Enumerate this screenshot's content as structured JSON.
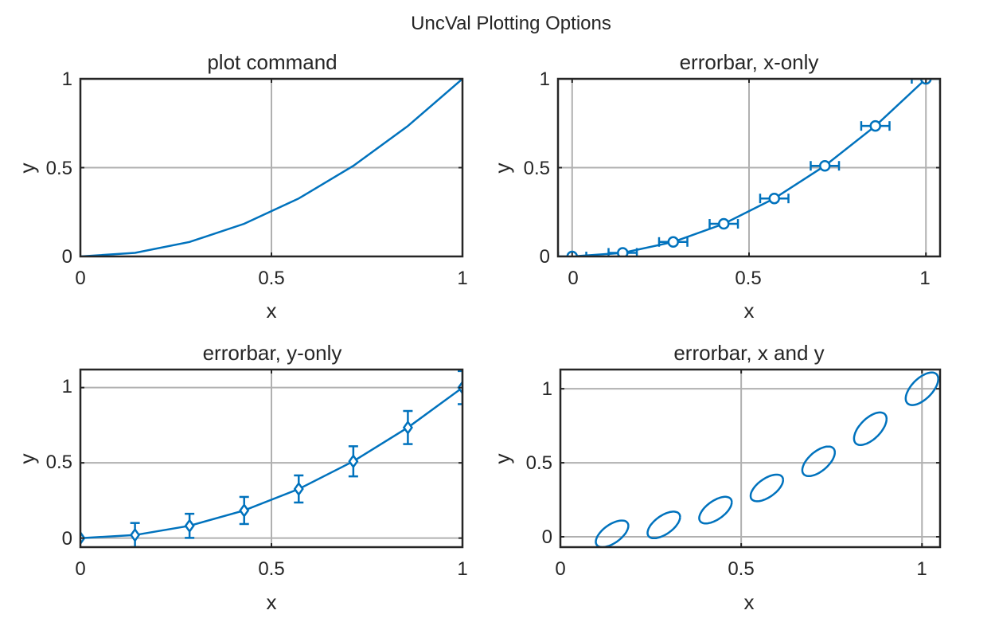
{
  "figure_title": "UncVal Plotting Options",
  "series_color": "#0072BD",
  "chart_data": [
    {
      "type": "line",
      "title": "plot command",
      "xlabel": "x",
      "ylabel": "y",
      "xlim": [
        0,
        1
      ],
      "ylim": [
        0,
        1
      ],
      "xticks": [
        0,
        0.5,
        1
      ],
      "xtick_labels": [
        "0",
        "0.5",
        "1"
      ],
      "yticks": [
        0,
        0.5,
        1
      ],
      "ytick_labels": [
        "0",
        "0.5",
        "1"
      ],
      "grid": true,
      "marker": "none",
      "series": [
        {
          "name": "y",
          "x": [
            0,
            0.1429,
            0.2857,
            0.4286,
            0.5714,
            0.7143,
            0.8571,
            1
          ],
          "y": [
            0,
            0.0204,
            0.0816,
            0.1837,
            0.3265,
            0.5102,
            0.7347,
            1
          ]
        }
      ]
    },
    {
      "type": "line",
      "title": "errorbar, x-only",
      "xlabel": "x",
      "ylabel": "y",
      "xlim": [
        -0.04,
        1.04
      ],
      "ylim": [
        0,
        1
      ],
      "xticks": [
        0,
        0.5,
        1
      ],
      "xtick_labels": [
        "0",
        "0.5",
        "1"
      ],
      "yticks": [
        0,
        0.5,
        1
      ],
      "ytick_labels": [
        "0",
        "0.5",
        "1"
      ],
      "grid": true,
      "marker": "circle",
      "series": [
        {
          "name": "y",
          "x": [
            0,
            0.1429,
            0.2857,
            0.4286,
            0.5714,
            0.7143,
            0.8571,
            1
          ],
          "y": [
            0,
            0.0204,
            0.0816,
            0.1837,
            0.3265,
            0.5102,
            0.7347,
            1
          ],
          "xerr": [
            0.04,
            0.04,
            0.04,
            0.04,
            0.04,
            0.04,
            0.04,
            0.04
          ]
        }
      ]
    },
    {
      "type": "line",
      "title": "errorbar, y-only",
      "xlabel": "x",
      "ylabel": "y",
      "xlim": [
        0,
        1
      ],
      "ylim": [
        -0.06,
        1.12
      ],
      "xticks": [
        0,
        0.5,
        1
      ],
      "xtick_labels": [
        "0",
        "0.5",
        "1"
      ],
      "yticks": [
        0,
        0.5,
        1
      ],
      "ytick_labels": [
        "0",
        "0.5",
        "1"
      ],
      "grid": true,
      "marker": "diamond",
      "series": [
        {
          "name": "y",
          "x": [
            0,
            0.1429,
            0.2857,
            0.4286,
            0.5714,
            0.7143,
            0.8571,
            1
          ],
          "y": [
            0,
            0.0204,
            0.0816,
            0.1837,
            0.3265,
            0.5102,
            0.7347,
            1
          ],
          "yerr": [
            0,
            0.08,
            0.08,
            0.09,
            0.09,
            0.1,
            0.11,
            0.11
          ]
        }
      ]
    },
    {
      "type": "scatter",
      "title": "errorbar, x and y",
      "xlabel": "x",
      "ylabel": "y",
      "xlim": [
        0,
        1.05
      ],
      "ylim": [
        -0.07,
        1.13
      ],
      "xticks": [
        0,
        0.5,
        1
      ],
      "xtick_labels": [
        "0",
        "0.5",
        "1"
      ],
      "yticks": [
        0,
        0.5,
        1
      ],
      "ytick_labels": [
        "0",
        "0.5",
        "1"
      ],
      "grid": true,
      "marker": "uncertainty-ellipse",
      "ellipses": [
        {
          "x": 0.143,
          "y": 0.02,
          "sx": 0.045,
          "sy": 0.09,
          "corr": 0.6
        },
        {
          "x": 0.286,
          "y": 0.08,
          "sx": 0.045,
          "sy": 0.09,
          "corr": 0.6
        },
        {
          "x": 0.429,
          "y": 0.18,
          "sx": 0.045,
          "sy": 0.09,
          "corr": 0.6
        },
        {
          "x": 0.571,
          "y": 0.33,
          "sx": 0.045,
          "sy": 0.09,
          "corr": 0.6
        },
        {
          "x": 0.714,
          "y": 0.51,
          "sx": 0.045,
          "sy": 0.1,
          "corr": 0.6
        },
        {
          "x": 0.857,
          "y": 0.73,
          "sx": 0.045,
          "sy": 0.11,
          "corr": 0.6
        },
        {
          "x": 1.0,
          "y": 1.0,
          "sx": 0.045,
          "sy": 0.11,
          "corr": 0.6
        }
      ]
    }
  ]
}
